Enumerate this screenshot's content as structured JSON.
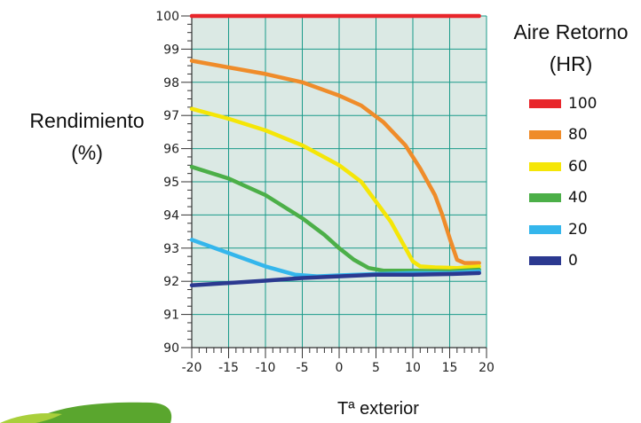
{
  "chart_data": {
    "type": "line",
    "ylabel": [
      "Rendimiento",
      "(%)"
    ],
    "xlabel": "Tª exterior",
    "legend_title": [
      "Aire Retorno",
      "(HR)"
    ],
    "legend_placement": "right",
    "grid": true,
    "background": "#dbe9e4",
    "grid_color": "#1a9a8a",
    "xlim": [
      -20,
      20
    ],
    "ylim": [
      90,
      100
    ],
    "x_ticks": [
      -20,
      -15,
      -10,
      -5,
      0,
      5,
      10,
      15,
      20
    ],
    "y_ticks": [
      90,
      91,
      92,
      93,
      94,
      95,
      96,
      97,
      98,
      99,
      100
    ],
    "series": [
      {
        "name": "100",
        "color": "#e8262b",
        "points": [
          [
            -20,
            100
          ],
          [
            -10,
            100
          ],
          [
            0,
            100
          ],
          [
            10,
            100
          ],
          [
            19,
            100
          ]
        ]
      },
      {
        "name": "80",
        "color": "#ef8c2a",
        "points": [
          [
            -20,
            98.65
          ],
          [
            -15,
            98.45
          ],
          [
            -10,
            98.25
          ],
          [
            -5,
            98.0
          ],
          [
            0,
            97.6
          ],
          [
            3,
            97.3
          ],
          [
            6,
            96.8
          ],
          [
            9,
            96.1
          ],
          [
            11,
            95.4
          ],
          [
            13,
            94.6
          ],
          [
            14,
            94.0
          ],
          [
            15,
            93.3
          ],
          [
            16,
            92.65
          ],
          [
            17,
            92.55
          ],
          [
            19,
            92.55
          ]
        ]
      },
      {
        "name": "60",
        "color": "#f5e607",
        "points": [
          [
            -20,
            97.2
          ],
          [
            -15,
            96.9
          ],
          [
            -10,
            96.55
          ],
          [
            -5,
            96.1
          ],
          [
            0,
            95.5
          ],
          [
            3,
            95.0
          ],
          [
            5,
            94.4
          ],
          [
            7,
            93.8
          ],
          [
            9,
            93.0
          ],
          [
            10,
            92.6
          ],
          [
            11,
            92.45
          ],
          [
            13,
            92.42
          ],
          [
            16,
            92.4
          ],
          [
            19,
            92.45
          ]
        ]
      },
      {
        "name": "40",
        "color": "#4caf48",
        "points": [
          [
            -20,
            95.45
          ],
          [
            -15,
            95.1
          ],
          [
            -10,
            94.6
          ],
          [
            -5,
            93.9
          ],
          [
            -2,
            93.4
          ],
          [
            0,
            93.0
          ],
          [
            2,
            92.65
          ],
          [
            4,
            92.4
          ],
          [
            6,
            92.32
          ],
          [
            10,
            92.32
          ],
          [
            15,
            92.3
          ],
          [
            19,
            92.35
          ]
        ]
      },
      {
        "name": "20",
        "color": "#34b6ec",
        "points": [
          [
            -20,
            93.25
          ],
          [
            -15,
            92.85
          ],
          [
            -10,
            92.45
          ],
          [
            -6,
            92.2
          ],
          [
            -3,
            92.15
          ],
          [
            0,
            92.18
          ],
          [
            5,
            92.22
          ],
          [
            10,
            92.25
          ],
          [
            15,
            92.25
          ],
          [
            19,
            92.3
          ]
        ]
      },
      {
        "name": "0",
        "color": "#2b3990",
        "points": [
          [
            -20,
            91.88
          ],
          [
            -15,
            91.95
          ],
          [
            -10,
            92.02
          ],
          [
            -5,
            92.1
          ],
          [
            0,
            92.15
          ],
          [
            5,
            92.2
          ],
          [
            10,
            92.2
          ],
          [
            15,
            92.22
          ],
          [
            19,
            92.25
          ]
        ]
      }
    ]
  }
}
